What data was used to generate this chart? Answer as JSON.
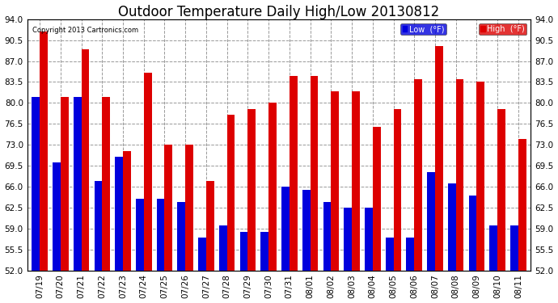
{
  "title": "Outdoor Temperature Daily High/Low 20130812",
  "copyright": "Copyright 2013 Cartronics.com",
  "legend_low": "Low  (°F)",
  "legend_high": "High  (°F)",
  "dates": [
    "07/19",
    "07/20",
    "07/21",
    "07/22",
    "07/23",
    "07/24",
    "07/25",
    "07/26",
    "07/27",
    "07/28",
    "07/29",
    "07/30",
    "07/31",
    "08/01",
    "08/02",
    "08/03",
    "08/04",
    "08/05",
    "08/06",
    "08/07",
    "08/08",
    "08/09",
    "08/10",
    "08/11"
  ],
  "high": [
    92.0,
    81.0,
    89.0,
    81.0,
    72.0,
    85.0,
    73.0,
    73.0,
    67.0,
    78.0,
    79.0,
    80.0,
    84.5,
    84.5,
    82.0,
    82.0,
    76.0,
    79.0,
    84.0,
    89.5,
    84.0,
    83.5,
    79.0,
    74.0
  ],
  "low": [
    81.0,
    70.0,
    81.0,
    67.0,
    71.0,
    64.0,
    64.0,
    63.5,
    57.5,
    59.5,
    58.5,
    58.5,
    66.0,
    65.5,
    63.5,
    62.5,
    62.5,
    57.5,
    57.5,
    68.5,
    66.5,
    64.5,
    59.5,
    59.5
  ],
  "ylim": [
    52.0,
    94.0
  ],
  "yticks": [
    52.0,
    55.5,
    59.0,
    62.5,
    66.0,
    69.5,
    73.0,
    76.5,
    80.0,
    83.5,
    87.0,
    90.5,
    94.0
  ],
  "color_low": "#0000dd",
  "color_high": "#dd0000",
  "bg_color": "#ffffff",
  "plot_bg_color": "#ffffff",
  "grid_color": "#999999",
  "title_fontsize": 12,
  "tick_fontsize": 7.5,
  "bar_width": 0.38
}
